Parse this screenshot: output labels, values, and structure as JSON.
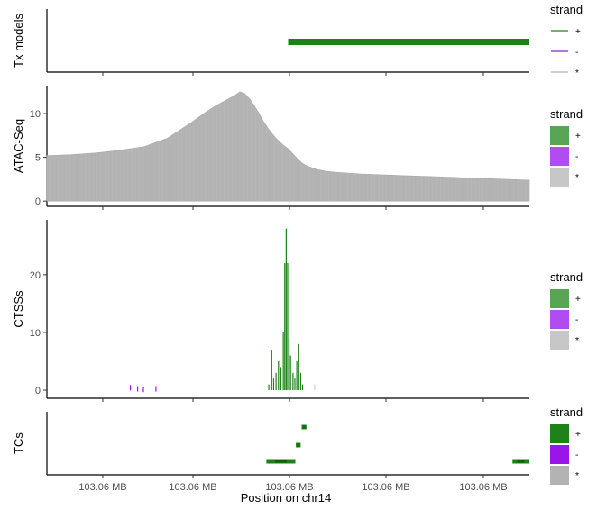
{
  "xlabel": "Position on chr14",
  "x_tick_labels": [
    "103.06 MB",
    "103.06 MB",
    "103.06 MB",
    "103.06 MB",
    "103.06 MB"
  ],
  "x_range": [
    0,
    100
  ],
  "colors": {
    "plus": "#1E8018",
    "minus": "#9A16E8",
    "star": "#B3B3B3"
  },
  "chart_data": [
    {
      "type": "bar",
      "ylabel": "Tx models",
      "yticks": [],
      "ylim": [
        0,
        1
      ],
      "transcripts": [
        {
          "strand": "+",
          "start": 50,
          "end": 100
        }
      ],
      "legend": {
        "title": "strand",
        "labels": [
          "+",
          "-",
          "*"
        ],
        "key": "line"
      }
    },
    {
      "type": "area",
      "ylabel": "ATAC-Seq",
      "yticks": [
        "0",
        "5",
        "10"
      ],
      "ylim": [
        -0.6,
        13.2
      ],
      "x": [
        0,
        5,
        10,
        15,
        20,
        25,
        30,
        33,
        35,
        37,
        39,
        40,
        41,
        42,
        43,
        44,
        45,
        46,
        47,
        48,
        49,
        50,
        51,
        52,
        53,
        54,
        55,
        56,
        58,
        60,
        65,
        70,
        75,
        80,
        85,
        90,
        95,
        100
      ],
      "values": [
        5.2,
        5.3,
        5.5,
        5.8,
        6.2,
        7.2,
        9.0,
        10.2,
        10.9,
        11.5,
        12.1,
        12.5,
        12.3,
        11.7,
        10.9,
        10.0,
        9.0,
        8.2,
        7.5,
        6.9,
        6.4,
        6.0,
        5.4,
        4.8,
        4.3,
        4.0,
        3.8,
        3.6,
        3.4,
        3.3,
        3.1,
        3.0,
        2.9,
        2.8,
        2.7,
        2.6,
        2.5,
        2.4
      ],
      "legend": {
        "title": "strand",
        "labels": [
          "+",
          "-",
          "*"
        ],
        "key": "fill"
      }
    },
    {
      "type": "bar",
      "ylabel": "CTSSs",
      "yticks": [
        "0",
        "10",
        "20"
      ],
      "ylim": [
        -1.4,
        29.5
      ],
      "bars": [
        {
          "x": 17.3,
          "y": 0.9,
          "strand": "-"
        },
        {
          "x": 18.8,
          "y": 0.7,
          "strand": "-"
        },
        {
          "x": 20.0,
          "y": 0.6,
          "strand": "-"
        },
        {
          "x": 22.6,
          "y": 0.7,
          "strand": "-"
        },
        {
          "x": 46.0,
          "y": 1.0,
          "strand": "+"
        },
        {
          "x": 46.6,
          "y": 7.0,
          "strand": "+"
        },
        {
          "x": 47.0,
          "y": 2.0,
          "strand": "+"
        },
        {
          "x": 47.5,
          "y": 3.0,
          "strand": "+"
        },
        {
          "x": 48.0,
          "y": 5.0,
          "strand": "+"
        },
        {
          "x": 48.5,
          "y": 4.0,
          "strand": "+"
        },
        {
          "x": 49.0,
          "y": 10.0,
          "strand": "+"
        },
        {
          "x": 49.3,
          "y": 22.0,
          "strand": "+"
        },
        {
          "x": 49.6,
          "y": 28.0,
          "strand": "+"
        },
        {
          "x": 49.9,
          "y": 22.0,
          "strand": "+"
        },
        {
          "x": 50.2,
          "y": 9.0,
          "strand": "+"
        },
        {
          "x": 50.5,
          "y": 6.0,
          "strand": "+"
        },
        {
          "x": 51.0,
          "y": 3.0,
          "strand": "+"
        },
        {
          "x": 51.4,
          "y": 2.0,
          "strand": "+"
        },
        {
          "x": 51.8,
          "y": 5.0,
          "strand": "+"
        },
        {
          "x": 52.2,
          "y": 8.0,
          "strand": "+"
        },
        {
          "x": 52.6,
          "y": 3.0,
          "strand": "+"
        },
        {
          "x": 53.0,
          "y": 1.0,
          "strand": "+"
        },
        {
          "x": 55.5,
          "y": 1.0,
          "strand": "*"
        }
      ],
      "legend": {
        "title": "strand",
        "labels": [
          "+",
          "-",
          "*"
        ],
        "key": "fill"
      }
    },
    {
      "type": "bar",
      "ylabel": "TCs",
      "yticks": [],
      "ylim": [
        0,
        1
      ],
      "clusters": [
        {
          "strand": "+",
          "start": 45.5,
          "end": 51.5,
          "row": 0
        },
        {
          "strand": "+",
          "start": 51.6,
          "end": 52.6,
          "row": 1
        },
        {
          "strand": "+",
          "start": 52.8,
          "end": 53.8,
          "row": 2
        },
        {
          "strand": "+",
          "start": 96.5,
          "end": 100.0,
          "row": 0
        }
      ],
      "legend": {
        "title": "strand",
        "labels": [
          "+",
          "-",
          "*"
        ],
        "key": "fill"
      }
    }
  ]
}
